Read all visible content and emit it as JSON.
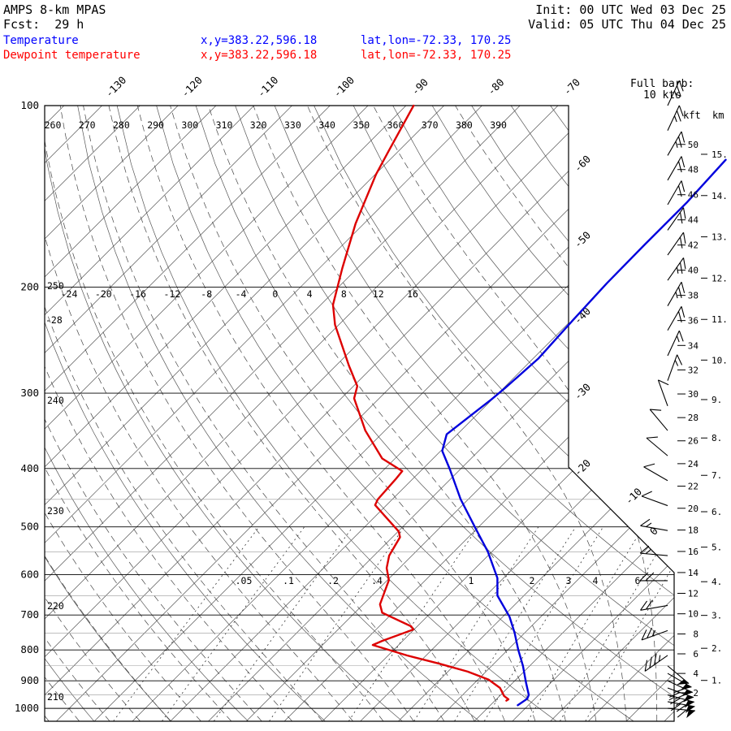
{
  "header": {
    "model": "AMPS 8-km MPAS",
    "fcst": "Fcst:  29 h",
    "init": "Init: 00 UTC Wed 03 Dec 25",
    "valid": "Valid: 05 UTC Thu 04 Dec 25"
  },
  "legend": {
    "temperature": {
      "label": "Temperature",
      "xy": "x,y=383.22,596.18",
      "latlon": "lat,lon=-72.33, 170.25",
      "color": "#0000ff"
    },
    "dewpoint": {
      "label": "Dewpoint temperature",
      "xy": "x,y=383.22,596.18",
      "latlon": "lat,lon=-72.33, 170.25",
      "color": "#ff0000"
    }
  },
  "barb_legend": {
    "line1": "Full barb:",
    "line2": "10 kts"
  },
  "chart_data": {
    "type": "line",
    "subtype": "skewt-log-p",
    "pressure_axis": {
      "unit": "hPa",
      "major": [
        100,
        200,
        300,
        400,
        500,
        600,
        700,
        800,
        900,
        1000
      ],
      "minor": [
        450,
        550,
        650,
        750,
        850,
        950
      ],
      "top": 100,
      "bottom": 1050
    },
    "isotherm_labels_top": [
      -130,
      -120,
      -110,
      -100,
      -90,
      -80,
      -70
    ],
    "isotherm_labels_right": [
      -60,
      -50,
      -40,
      -30,
      -20
    ],
    "isotherm_labels_cut": [
      {
        "value": -10,
        "x": 783,
        "y": 614
      },
      {
        "value": 0,
        "x": 808,
        "y": 657
      }
    ],
    "theta_labels_top": [
      260,
      270,
      280,
      290,
      300,
      310,
      320,
      330,
      340,
      350,
      360,
      370,
      380,
      390
    ],
    "theta_labels_left": [
      {
        "value": 250,
        "y": 352
      },
      {
        "value": 240,
        "y": 493
      },
      {
        "value": 230,
        "y": 629
      },
      {
        "value": 220,
        "y": 746
      },
      {
        "value": 210,
        "y": 858
      }
    ],
    "moist_adiabat_labels": {
      "values": [
        -24,
        -20,
        -16,
        -12,
        -8,
        -4,
        0,
        4,
        8,
        12,
        16
      ],
      "y": 366,
      "x_start": 85,
      "x_step": 42.3,
      "extra": {
        "value": -28,
        "x": 56,
        "y": 398
      }
    },
    "mixing_ratio_labels": [
      {
        "label": ".05",
        "x": 300
      },
      {
        "label": ".1",
        "x": 355
      },
      {
        "label": ".2",
        "x": 410
      },
      {
        "label": ".4",
        "x": 464
      },
      {
        "label": "1",
        "x": 580
      },
      {
        "label": "2",
        "x": 655
      },
      {
        "label": "3",
        "x": 700
      },
      {
        "label": "4",
        "x": 733
      },
      {
        "label": "6",
        "x": 785
      }
    ],
    "mixing_label_row_y": 719,
    "mixing_ratio_lines": [
      0.05,
      0.1,
      0.2,
      0.4,
      1,
      2,
      3,
      4,
      6,
      8,
      10
    ],
    "series": {
      "temperature": {
        "name": "Temperature",
        "color": "#0000dd",
        "unit": "degC vs hPa",
        "points": [
          [
            988,
            3.6
          ],
          [
            964,
            4.0
          ],
          [
            950,
            3.7
          ],
          [
            906,
            1.7
          ],
          [
            850,
            -0.9
          ],
          [
            800,
            -3.6
          ],
          [
            750,
            -6.3
          ],
          [
            705,
            -9.1
          ],
          [
            650,
            -13.5
          ],
          [
            608,
            -15.8
          ],
          [
            550,
            -20.5
          ],
          [
            502,
            -25.3
          ],
          [
            450,
            -31.0
          ],
          [
            401,
            -36.4
          ],
          [
            374,
            -39.8
          ],
          [
            351,
            -41.4
          ],
          [
            330,
            -40.8
          ],
          [
            307,
            -40.1
          ],
          [
            294,
            -39.8
          ],
          [
            263,
            -39.3
          ],
          [
            227,
            -39.8
          ],
          [
            197,
            -40.2
          ],
          [
            170,
            -40.3
          ],
          [
            145,
            -40.3
          ],
          [
            123,
            -40.8
          ]
        ]
      },
      "dewpoint": {
        "name": "Dewpoint temperature",
        "color": "#dd0000",
        "unit": "degC vs hPa",
        "points": [
          [
            971,
            1.5
          ],
          [
            966,
            1.6
          ],
          [
            954,
            0.6
          ],
          [
            925,
            -1.0
          ],
          [
            896,
            -3.6
          ],
          [
            869,
            -7.4
          ],
          [
            843,
            -12.2
          ],
          [
            817,
            -17.5
          ],
          [
            785,
            -23.4
          ],
          [
            773,
            -22.7
          ],
          [
            740,
            -20.1
          ],
          [
            731,
            -20.8
          ],
          [
            694,
            -26.4
          ],
          [
            672,
            -27.8
          ],
          [
            613,
            -29.8
          ],
          [
            585,
            -31.7
          ],
          [
            558,
            -33.0
          ],
          [
            520,
            -34.0
          ],
          [
            509,
            -34.9
          ],
          [
            460,
            -41.5
          ],
          [
            450,
            -41.9
          ],
          [
            417,
            -42.2
          ],
          [
            404,
            -42.4
          ],
          [
            385,
            -46.7
          ],
          [
            346,
            -52.6
          ],
          [
            306,
            -58.3
          ],
          [
            292,
            -59.5
          ],
          [
            270,
            -63.3
          ],
          [
            231,
            -70.5
          ],
          [
            214,
            -73.4
          ],
          [
            186,
            -77.0
          ],
          [
            157,
            -81.1
          ],
          [
            130,
            -84.9
          ],
          [
            119,
            -86.3
          ],
          [
            100,
            -89.0
          ]
        ]
      }
    },
    "wind_barbs": {
      "x": 822,
      "full_barb_kts": 10,
      "levels": [
        [
          100,
          25,
          25
        ],
        [
          110,
          25,
          25
        ],
        [
          121,
          30,
          25
        ],
        [
          133,
          30,
          20
        ],
        [
          146,
          30,
          20
        ],
        [
          161,
          35,
          20
        ],
        [
          177,
          35,
          20
        ],
        [
          195,
          35,
          25
        ],
        [
          215,
          30,
          25
        ],
        [
          236,
          30,
          20
        ],
        [
          260,
          25,
          15
        ],
        [
          286,
          20,
          15
        ],
        [
          315,
          340,
          10
        ],
        [
          346,
          320,
          10
        ],
        [
          381,
          310,
          10
        ],
        [
          419,
          300,
          10
        ],
        [
          461,
          290,
          10
        ],
        [
          507,
          280,
          15
        ],
        [
          558,
          275,
          15
        ],
        [
          614,
          270,
          20
        ],
        [
          675,
          260,
          20
        ],
        [
          743,
          250,
          25
        ],
        [
          817,
          235,
          35
        ],
        [
          850,
          130,
          50
        ],
        [
          875,
          120,
          55
        ],
        [
          900,
          115,
          60
        ],
        [
          925,
          110,
          70
        ],
        [
          950,
          105,
          75
        ],
        [
          975,
          100,
          70
        ],
        [
          1000,
          95,
          60
        ]
      ]
    },
    "height_axis": {
      "kft_header": "kft",
      "km_header": "km",
      "kft": [
        50,
        48,
        46,
        44,
        42,
        40,
        38,
        36,
        34,
        32,
        30,
        28,
        26,
        24,
        22,
        20,
        18,
        16,
        14,
        12,
        10,
        8,
        6,
        4,
        2
      ],
      "km": [
        15,
        14,
        13,
        12,
        11,
        10,
        9,
        8,
        7,
        6,
        5,
        4,
        3,
        2,
        1
      ]
    }
  }
}
